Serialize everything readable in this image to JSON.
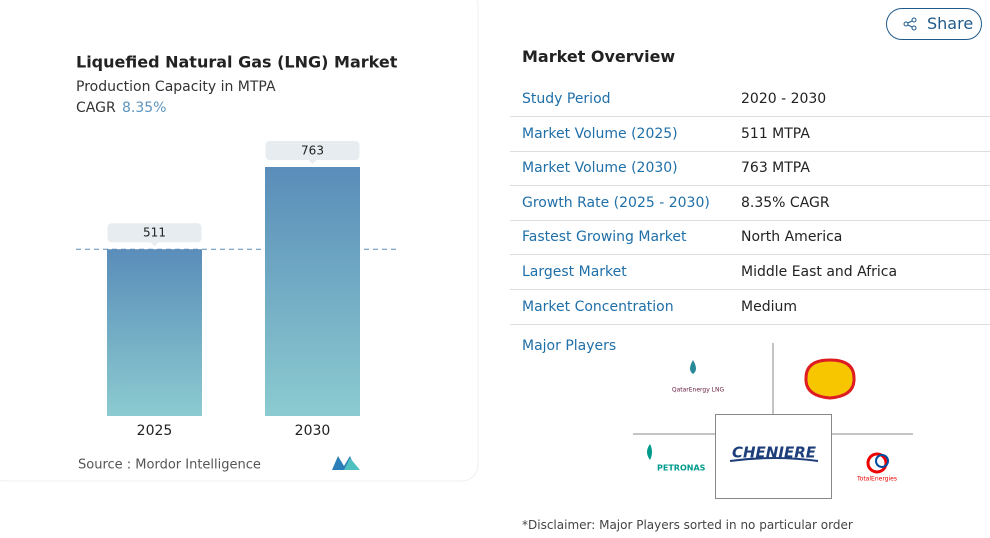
{
  "chart_data": {
    "type": "bar",
    "title": "Liquefied Natural Gas (LNG) Market",
    "subtitle": "Production Capacity in MTPA",
    "cagr_label": "CAGR",
    "cagr": "8.35%",
    "categories": [
      "2025",
      "2030"
    ],
    "values": [
      511,
      763
    ],
    "source": "Source :  Mordor Intelligence"
  },
  "share": "Share",
  "overview": {
    "title": "Market Overview",
    "rows": [
      [
        "Study Period",
        "2020 - 2030"
      ],
      [
        "Market Volume (2025)",
        "511 MTPA"
      ],
      [
        "Market Volume (2030)",
        "763 MTPA"
      ],
      [
        "Growth Rate (2025 - 2030)",
        "8.35% CAGR"
      ],
      [
        "Fastest Growing Market",
        "North America"
      ],
      [
        "Largest Market",
        "Middle East and Africa"
      ],
      [
        "Market Concentration",
        "Medium"
      ]
    ],
    "major_players_label": "Major Players",
    "players": [
      "QatarEnergy LNG",
      "CHENIERE",
      "PETRONAS",
      "TotalEnergies"
    ],
    "disclaimer": "*Disclaimer: Major Players sorted in no particular order"
  }
}
